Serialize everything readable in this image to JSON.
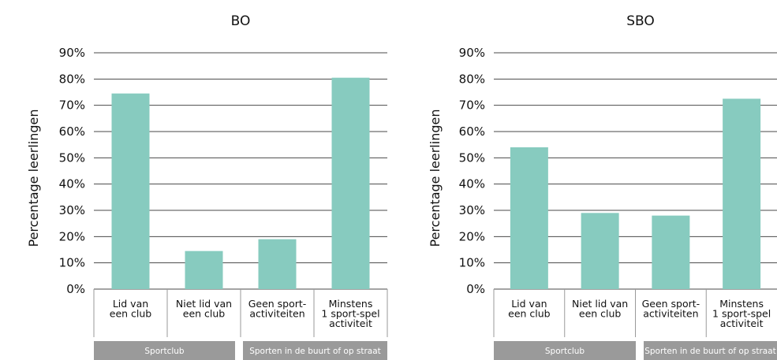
{
  "colors": {
    "bar": "#87cbbf",
    "grid": "#4a4a4a",
    "group_band": "#9a9a9a"
  },
  "chart_data": [
    {
      "type": "bar",
      "title": "BO",
      "ylabel": "Percentage leerlingen",
      "ylim": [
        0,
        90
      ],
      "yticks": [
        "0%",
        "10%",
        "20%",
        "30%",
        "40%",
        "50%",
        "60%",
        "70%",
        "80%",
        "90%"
      ],
      "categories": [
        [
          "Lid van",
          "een club"
        ],
        [
          "Niet lid van",
          "een club"
        ],
        [
          "Geen sport-",
          "activiteiten"
        ],
        [
          "Minstens",
          "1 sport-spel",
          "activiteit"
        ]
      ],
      "values": [
        74.5,
        14.5,
        19,
        80.5
      ],
      "groups": [
        "Sportclub",
        "Sporten in de buurt of op straat"
      ]
    },
    {
      "type": "bar",
      "title": "SBO",
      "ylabel": "Percentage leerlingen",
      "ylim": [
        0,
        90
      ],
      "yticks": [
        "0%",
        "10%",
        "20%",
        "30%",
        "40%",
        "50%",
        "60%",
        "70%",
        "80%",
        "90%"
      ],
      "categories": [
        [
          "Lid van",
          "een club"
        ],
        [
          "Niet lid van",
          "een club"
        ],
        [
          "Geen sport-",
          "activiteiten"
        ],
        [
          "Minstens",
          "1 sport-spel",
          "activiteit"
        ]
      ],
      "values": [
        54,
        29,
        28,
        72.5
      ],
      "groups": [
        "Sportclub",
        "Sporten in de buurt of op straat"
      ]
    }
  ]
}
